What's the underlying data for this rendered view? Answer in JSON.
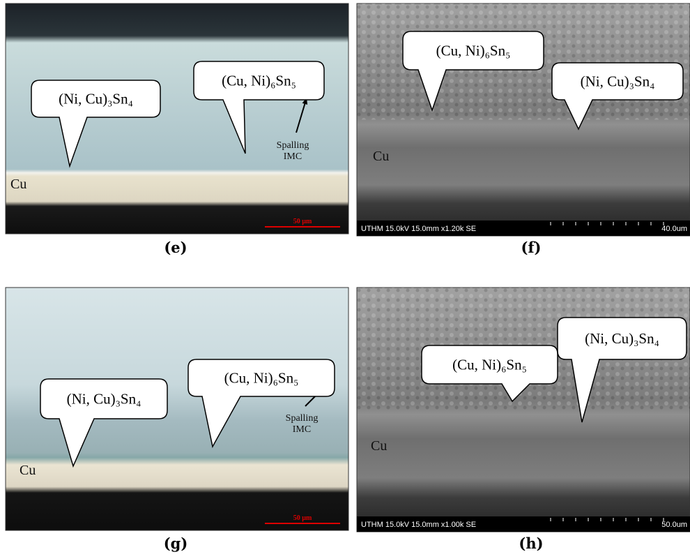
{
  "panels": [
    {
      "label": "(e)",
      "callouts": [
        "(Ni, Cu)₃Sn₄",
        "(Cu, Ni)₆Sn₅"
      ],
      "region": "Cu",
      "annotation": [
        "Spalling",
        "IMC"
      ],
      "scale_bar": "50 µm"
    },
    {
      "label": "(f)",
      "callouts": [
        "(Cu, Ni)₆Sn₅",
        "(Ni, Cu)₃Sn₄"
      ],
      "region": "Cu",
      "info_bar": "UTHM 15.0kV 15.0mm x1.20k SE",
      "scale_bar": "40.0um"
    },
    {
      "label": "(g)",
      "callouts": [
        "(Ni, Cu)₃Sn₄",
        "(Cu, Ni)₆Sn₅"
      ],
      "region": "Cu",
      "annotation": [
        "Spalling",
        "IMC"
      ],
      "scale_bar": "50 µm"
    },
    {
      "label": "(h)",
      "callouts": [
        "(Cu, Ni)₆Sn₅",
        "(Ni, Cu)₃Sn₄"
      ],
      "region": "Cu",
      "info_bar": "UTHM 15.0kV 15.0mm x1.00k SE",
      "scale_bar": "50.0um"
    }
  ]
}
